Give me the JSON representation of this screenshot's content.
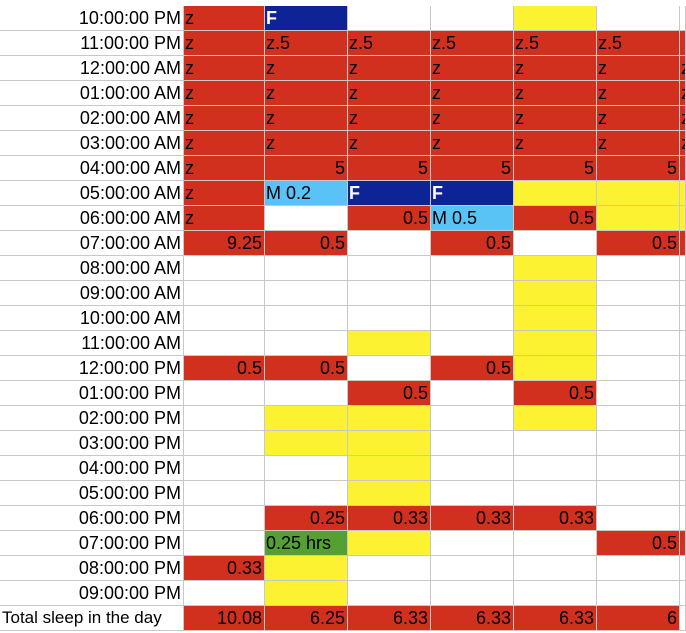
{
  "colors": {
    "red": "#d2301e",
    "yellow": "#fcf232",
    "navy": "#0d2396",
    "light_blue": "#5ac3f5",
    "green": "#55a032",
    "white": "#ffffff"
  },
  "rows": [
    {
      "label": "10:00:00 PM",
      "cells": [
        {
          "color": "red",
          "text": "z"
        },
        {
          "color": "navy",
          "text": "F"
        },
        {
          "color": "white",
          "text": ""
        },
        {
          "color": "white",
          "text": ""
        },
        {
          "color": "yellow",
          "text": ""
        },
        {
          "color": "white",
          "text": ""
        }
      ]
    },
    {
      "label": "11:00:00 PM",
      "cells": [
        {
          "color": "red",
          "text": "z"
        },
        {
          "color": "red",
          "text": "z.5"
        },
        {
          "color": "red",
          "text": "z.5"
        },
        {
          "color": "red",
          "text": "z.5"
        },
        {
          "color": "red",
          "text": "z.5"
        },
        {
          "color": "red",
          "text": "z.5"
        }
      ]
    },
    {
      "label": "12:00:00 AM",
      "cells": [
        {
          "color": "red",
          "text": "z"
        },
        {
          "color": "red",
          "text": "z"
        },
        {
          "color": "red",
          "text": "z"
        },
        {
          "color": "red",
          "text": "z"
        },
        {
          "color": "red",
          "text": "z"
        },
        {
          "color": "red",
          "text": "z"
        }
      ]
    },
    {
      "label": "01:00:00 AM",
      "cells": [
        {
          "color": "red",
          "text": "z"
        },
        {
          "color": "red",
          "text": "z"
        },
        {
          "color": "red",
          "text": "z"
        },
        {
          "color": "red",
          "text": "z"
        },
        {
          "color": "red",
          "text": "z"
        },
        {
          "color": "red",
          "text": "z"
        }
      ]
    },
    {
      "label": "02:00:00 AM",
      "cells": [
        {
          "color": "red",
          "text": "z"
        },
        {
          "color": "red",
          "text": "z"
        },
        {
          "color": "red",
          "text": "z"
        },
        {
          "color": "red",
          "text": "z"
        },
        {
          "color": "red",
          "text": "z"
        },
        {
          "color": "red",
          "text": "z"
        }
      ]
    },
    {
      "label": "03:00:00 AM",
      "cells": [
        {
          "color": "red",
          "text": "z"
        },
        {
          "color": "red",
          "text": "z"
        },
        {
          "color": "red",
          "text": "z"
        },
        {
          "color": "red",
          "text": "z"
        },
        {
          "color": "red",
          "text": "z"
        },
        {
          "color": "red",
          "text": "z"
        }
      ]
    },
    {
      "label": "04:00:00 AM",
      "cells": [
        {
          "color": "red",
          "text": "z"
        },
        {
          "color": "red",
          "text": "5",
          "num": true
        },
        {
          "color": "red",
          "text": "5",
          "num": true
        },
        {
          "color": "red",
          "text": "5",
          "num": true
        },
        {
          "color": "red",
          "text": "5",
          "num": true
        },
        {
          "color": "red",
          "text": "5",
          "num": true
        }
      ]
    },
    {
      "label": "05:00:00 AM",
      "cells": [
        {
          "color": "red",
          "text": "z"
        },
        {
          "color": "light_blue",
          "text": "M 0.2"
        },
        {
          "color": "navy",
          "text": "F"
        },
        {
          "color": "navy",
          "text": "F"
        },
        {
          "color": "yellow",
          "text": ""
        },
        {
          "color": "yellow",
          "text": ""
        }
      ]
    },
    {
      "label": "06:00:00 AM",
      "cells": [
        {
          "color": "red",
          "text": "z"
        },
        {
          "color": "white",
          "text": ""
        },
        {
          "color": "red",
          "text": "0.5",
          "num": true
        },
        {
          "color": "light_blue",
          "text": "M 0.5"
        },
        {
          "color": "red",
          "text": "0.5",
          "num": true
        },
        {
          "color": "yellow",
          "text": ""
        }
      ]
    },
    {
      "label": "07:00:00 AM",
      "cells": [
        {
          "color": "red",
          "text": "9.25",
          "num": true
        },
        {
          "color": "red",
          "text": "0.5",
          "num": true
        },
        {
          "color": "white",
          "text": ""
        },
        {
          "color": "red",
          "text": "0.5",
          "num": true
        },
        {
          "color": "white",
          "text": ""
        },
        {
          "color": "red",
          "text": "0.5",
          "num": true
        }
      ]
    },
    {
      "label": "08:00:00 AM",
      "cells": [
        {
          "color": "white",
          "text": ""
        },
        {
          "color": "white",
          "text": ""
        },
        {
          "color": "white",
          "text": ""
        },
        {
          "color": "white",
          "text": ""
        },
        {
          "color": "yellow",
          "text": ""
        },
        {
          "color": "white",
          "text": ""
        }
      ]
    },
    {
      "label": "09:00:00 AM",
      "cells": [
        {
          "color": "white",
          "text": ""
        },
        {
          "color": "white",
          "text": ""
        },
        {
          "color": "white",
          "text": ""
        },
        {
          "color": "white",
          "text": ""
        },
        {
          "color": "yellow",
          "text": ""
        },
        {
          "color": "white",
          "text": ""
        }
      ]
    },
    {
      "label": "10:00:00 AM",
      "cells": [
        {
          "color": "white",
          "text": ""
        },
        {
          "color": "white",
          "text": ""
        },
        {
          "color": "white",
          "text": ""
        },
        {
          "color": "white",
          "text": ""
        },
        {
          "color": "yellow",
          "text": ""
        },
        {
          "color": "white",
          "text": ""
        }
      ]
    },
    {
      "label": "11:00:00 AM",
      "cells": [
        {
          "color": "white",
          "text": ""
        },
        {
          "color": "white",
          "text": ""
        },
        {
          "color": "yellow",
          "text": ""
        },
        {
          "color": "white",
          "text": ""
        },
        {
          "color": "yellow",
          "text": ""
        },
        {
          "color": "white",
          "text": ""
        }
      ]
    },
    {
      "label": "12:00:00 PM",
      "cells": [
        {
          "color": "red",
          "text": "0.5",
          "num": true
        },
        {
          "color": "red",
          "text": "0.5",
          "num": true
        },
        {
          "color": "white",
          "text": ""
        },
        {
          "color": "red",
          "text": "0.5",
          "num": true
        },
        {
          "color": "yellow",
          "text": ""
        },
        {
          "color": "white",
          "text": ""
        }
      ]
    },
    {
      "label": "01:00:00 PM",
      "cells": [
        {
          "color": "white",
          "text": ""
        },
        {
          "color": "white",
          "text": ""
        },
        {
          "color": "red",
          "text": "0.5",
          "num": true
        },
        {
          "color": "white",
          "text": ""
        },
        {
          "color": "red",
          "text": "0.5",
          "num": true
        },
        {
          "color": "white",
          "text": ""
        }
      ]
    },
    {
      "label": "02:00:00 PM",
      "cells": [
        {
          "color": "white",
          "text": ""
        },
        {
          "color": "yellow",
          "text": ""
        },
        {
          "color": "yellow",
          "text": ""
        },
        {
          "color": "white",
          "text": ""
        },
        {
          "color": "yellow",
          "text": ""
        },
        {
          "color": "white",
          "text": ""
        }
      ]
    },
    {
      "label": "03:00:00 PM",
      "cells": [
        {
          "color": "white",
          "text": ""
        },
        {
          "color": "yellow",
          "text": ""
        },
        {
          "color": "yellow",
          "text": ""
        },
        {
          "color": "white",
          "text": ""
        },
        {
          "color": "white",
          "text": ""
        },
        {
          "color": "white",
          "text": ""
        }
      ]
    },
    {
      "label": "04:00:00 PM",
      "cells": [
        {
          "color": "white",
          "text": ""
        },
        {
          "color": "white",
          "text": ""
        },
        {
          "color": "yellow",
          "text": ""
        },
        {
          "color": "white",
          "text": ""
        },
        {
          "color": "white",
          "text": ""
        },
        {
          "color": "white",
          "text": ""
        }
      ]
    },
    {
      "label": "05:00:00 PM",
      "cells": [
        {
          "color": "white",
          "text": ""
        },
        {
          "color": "white",
          "text": ""
        },
        {
          "color": "yellow",
          "text": ""
        },
        {
          "color": "white",
          "text": ""
        },
        {
          "color": "white",
          "text": ""
        },
        {
          "color": "white",
          "text": ""
        }
      ]
    },
    {
      "label": "06:00:00 PM",
      "cells": [
        {
          "color": "white",
          "text": ""
        },
        {
          "color": "red",
          "text": "0.25",
          "num": true
        },
        {
          "color": "red",
          "text": "0.33",
          "num": true
        },
        {
          "color": "red",
          "text": "0.33",
          "num": true
        },
        {
          "color": "red",
          "text": "0.33",
          "num": true
        },
        {
          "color": "white",
          "text": ""
        }
      ]
    },
    {
      "label": "07:00:00 PM",
      "cells": [
        {
          "color": "white",
          "text": ""
        },
        {
          "color": "green",
          "text": "0.25 hrs"
        },
        {
          "color": "yellow",
          "text": ""
        },
        {
          "color": "white",
          "text": ""
        },
        {
          "color": "white",
          "text": ""
        },
        {
          "color": "red",
          "text": "0.5",
          "num": true
        }
      ]
    },
    {
      "label": "08:00:00 PM",
      "cells": [
        {
          "color": "red",
          "text": "0.33",
          "num": true
        },
        {
          "color": "yellow",
          "text": ""
        },
        {
          "color": "white",
          "text": ""
        },
        {
          "color": "white",
          "text": ""
        },
        {
          "color": "white",
          "text": ""
        },
        {
          "color": "white",
          "text": ""
        }
      ]
    },
    {
      "label": "09:00:00 PM",
      "cells": [
        {
          "color": "white",
          "text": ""
        },
        {
          "color": "yellow",
          "text": ""
        },
        {
          "color": "white",
          "text": ""
        },
        {
          "color": "white",
          "text": ""
        },
        {
          "color": "white",
          "text": ""
        },
        {
          "color": "white",
          "text": ""
        }
      ]
    },
    {
      "label": "Total sleep in the day",
      "cells": [
        {
          "color": "red",
          "text": "10.08",
          "num": true
        },
        {
          "color": "red",
          "text": "6.25",
          "num": true
        },
        {
          "color": "red",
          "text": "6.33",
          "num": true
        },
        {
          "color": "red",
          "text": "6.33",
          "num": true
        },
        {
          "color": "red",
          "text": "6.33",
          "num": true
        },
        {
          "color": "red",
          "text": "6",
          "num": true
        }
      ]
    }
  ],
  "right_edge_partial": [
    {
      "color": "white",
      "text": ""
    },
    {
      "color": "red",
      "text": ""
    },
    {
      "color": "red",
      "text": "z"
    },
    {
      "color": "red",
      "text": "z"
    },
    {
      "color": "red",
      "text": "z"
    },
    {
      "color": "red",
      "text": "z"
    },
    {
      "color": "red",
      "text": ""
    },
    {
      "color": "yellow",
      "text": ""
    },
    {
      "color": "yellow",
      "text": ""
    },
    {
      "color": "red",
      "text": ""
    },
    {
      "color": "white",
      "text": ""
    },
    {
      "color": "white",
      "text": ""
    },
    {
      "color": "white",
      "text": ""
    },
    {
      "color": "white",
      "text": ""
    },
    {
      "color": "white",
      "text": ""
    },
    {
      "color": "white",
      "text": ""
    },
    {
      "color": "white",
      "text": ""
    },
    {
      "color": "white",
      "text": ""
    },
    {
      "color": "white",
      "text": ""
    },
    {
      "color": "white",
      "text": ""
    },
    {
      "color": "white",
      "text": ""
    },
    {
      "color": "red",
      "text": ""
    },
    {
      "color": "white",
      "text": ""
    },
    {
      "color": "white",
      "text": ""
    },
    {
      "color": "white",
      "text": ""
    }
  ]
}
